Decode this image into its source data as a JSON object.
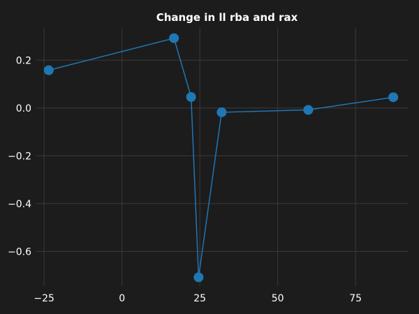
{
  "chart_data": {
    "type": "line",
    "title": "Change in ll rba and rax",
    "xlabel": "",
    "ylabel": "",
    "x": [
      -23.5,
      16.7,
      22.2,
      24.6,
      32.0,
      59.8,
      87.1
    ],
    "series": [
      {
        "values": [
          0.158,
          0.292,
          0.046,
          -0.708,
          -0.018,
          -0.008,
          0.045
        ]
      }
    ],
    "xlim": [
      -27.5,
      92
    ],
    "ylim": [
      -0.745,
      0.335
    ],
    "xticks": [
      -25,
      0,
      25,
      50,
      75
    ],
    "xtick_labels": [
      "−25",
      "0",
      "25",
      "50",
      "75"
    ],
    "yticks": [
      0.2,
      0.0,
      -0.2,
      -0.4,
      -0.6
    ],
    "ytick_labels": [
      "0.2",
      "0.0",
      "−0.2",
      "−0.4",
      "−0.6"
    ],
    "grid": true,
    "colors": {
      "background": "#1c1c1c",
      "grid": "#3a3a3a",
      "series": "#1f77b4",
      "text": "#ffffff"
    }
  }
}
